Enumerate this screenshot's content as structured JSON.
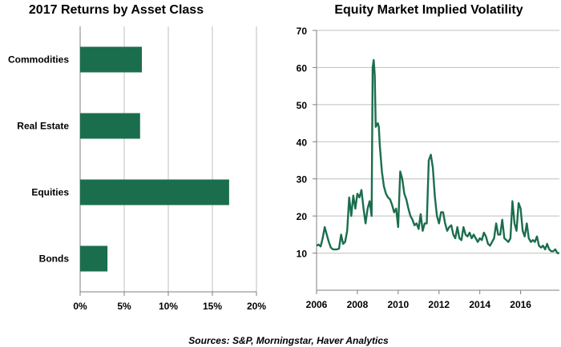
{
  "charts": [
    {
      "title": "2017 Returns by Asset Class"
    },
    {
      "title": "Equity Market Implied Volatility"
    }
  ],
  "source_note": "Sources: S&P, Morningstar, Haver Analytics",
  "colors": {
    "series": "#1b6e4d",
    "grid": "#bfbfbf"
  },
  "chart_data": [
    {
      "type": "bar",
      "orientation": "horizontal",
      "title": "2017 Returns by Asset Class",
      "categories": [
        "Commodities",
        "Real Estate",
        "Equities",
        "Bonds"
      ],
      "values": [
        7.0,
        6.8,
        16.9,
        3.1
      ],
      "unit": "%",
      "xlim": [
        0,
        20
      ],
      "xticks": [
        0,
        5,
        10,
        15,
        20
      ],
      "xtick_labels": [
        "0%",
        "5%",
        "10%",
        "15%",
        "20%"
      ],
      "grid": "vertical"
    },
    {
      "type": "line",
      "title": "Equity Market Implied Volatility",
      "x": [
        2006.0,
        2006.1,
        2006.2,
        2006.3,
        2006.4,
        2006.5,
        2006.6,
        2006.7,
        2006.8,
        2006.9,
        2007.0,
        2007.1,
        2007.2,
        2007.3,
        2007.4,
        2007.5,
        2007.6,
        2007.7,
        2007.8,
        2007.9,
        2008.0,
        2008.1,
        2008.2,
        2008.3,
        2008.4,
        2008.5,
        2008.6,
        2008.7,
        2008.75,
        2008.8,
        2008.85,
        2008.9,
        2009.0,
        2009.05,
        2009.1,
        2009.2,
        2009.3,
        2009.4,
        2009.5,
        2009.6,
        2009.7,
        2009.8,
        2009.9,
        2010.0,
        2010.1,
        2010.2,
        2010.3,
        2010.4,
        2010.5,
        2010.6,
        2010.7,
        2010.8,
        2010.9,
        2011.0,
        2011.1,
        2011.2,
        2011.3,
        2011.4,
        2011.5,
        2011.6,
        2011.7,
        2011.8,
        2011.9,
        2012.0,
        2012.1,
        2012.2,
        2012.3,
        2012.4,
        2012.5,
        2012.6,
        2012.7,
        2012.8,
        2012.9,
        2013.0,
        2013.1,
        2013.2,
        2013.3,
        2013.4,
        2013.5,
        2013.6,
        2013.7,
        2013.8,
        2013.9,
        2014.0,
        2014.1,
        2014.2,
        2014.3,
        2014.4,
        2014.5,
        2014.6,
        2014.7,
        2014.8,
        2014.9,
        2015.0,
        2015.1,
        2015.2,
        2015.3,
        2015.4,
        2015.5,
        2015.6,
        2015.7,
        2015.8,
        2015.9,
        2016.0,
        2016.1,
        2016.2,
        2016.3,
        2016.4,
        2016.5,
        2016.6,
        2016.7,
        2016.8,
        2016.9,
        2017.0,
        2017.1,
        2017.2,
        2017.3,
        2017.4,
        2017.5,
        2017.6,
        2017.7,
        2017.8,
        2017.9
      ],
      "values": [
        12,
        12.3,
        11.8,
        14,
        17,
        15,
        13,
        11.5,
        11,
        11,
        11,
        11.2,
        15,
        12.5,
        13,
        16,
        25,
        20,
        25.5,
        22,
        26,
        25,
        27,
        22,
        18,
        22,
        24,
        20,
        60,
        62,
        58,
        44,
        45,
        44,
        39,
        32,
        28,
        26,
        25,
        24.5,
        23,
        21,
        22,
        17,
        32,
        30,
        26,
        24.5,
        22,
        20,
        19,
        17.5,
        18,
        16.5,
        20.5,
        16,
        18,
        18,
        35,
        36.5,
        33,
        25,
        20,
        18,
        21,
        21,
        18,
        16,
        17,
        17.5,
        15,
        14,
        17,
        14,
        13.5,
        17,
        15,
        14.5,
        15.5,
        14,
        15,
        14,
        13,
        14,
        13.5,
        15.5,
        14.5,
        12.5,
        12,
        13,
        14,
        18,
        15,
        15,
        19,
        14,
        13.5,
        13,
        14,
        24,
        18,
        16,
        23.5,
        22,
        16,
        14.5,
        18,
        14,
        13,
        13.5,
        13,
        14.5,
        12,
        11.5,
        12,
        11,
        12.5,
        11,
        10.5,
        10.5,
        11,
        10,
        10
      ],
      "xlim": [
        2006,
        2017.9
      ],
      "ylim": [
        0,
        70
      ],
      "xticks": [
        2006,
        2008,
        2010,
        2012,
        2014,
        2016
      ],
      "xtick_labels": [
        "2006",
        "2008",
        "2010",
        "2012",
        "2014",
        "2016"
      ],
      "yticks": [
        10,
        20,
        30,
        40,
        50,
        60,
        70
      ],
      "ytick_labels": [
        "10",
        "20",
        "30",
        "40",
        "50",
        "60",
        "70"
      ],
      "grid": "horizontal"
    }
  ]
}
